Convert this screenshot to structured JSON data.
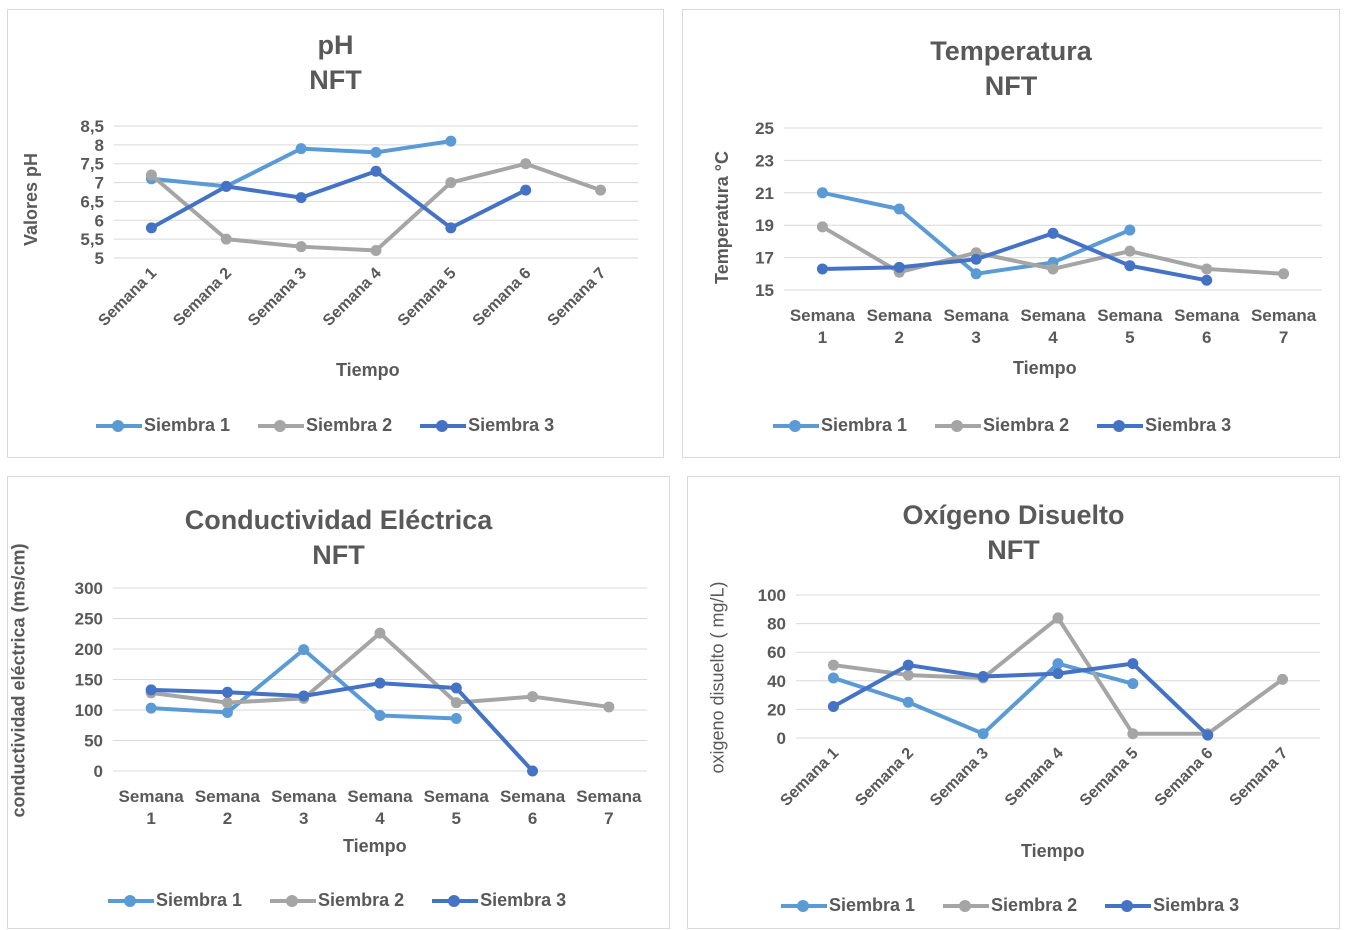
{
  "colors": {
    "siembra1": "#5b9bd5",
    "siembra2": "#a5a5a5",
    "siembra3": "#4472c4",
    "grid": "#d9d9d9",
    "text": "#595959"
  },
  "legend": [
    "Siembra 1",
    "Siembra 2",
    "Siembra 3"
  ],
  "chart_data": [
    {
      "id": "ph",
      "type": "line",
      "title": [
        "pH",
        "NFT"
      ],
      "xlabel": "Tiempo",
      "ylabel": "Valores pH",
      "categories": [
        "Semana 1",
        "Semana 2",
        "Semana 3",
        "Semana 4",
        "Semana 5",
        "Semana 6",
        "Semana 7"
      ],
      "category_label_style": "rotated",
      "ylim": [
        5,
        8.5
      ],
      "yticks": [
        "5",
        "5,5",
        "6",
        "6,5",
        "7",
        "7,5",
        "8",
        "8,5"
      ],
      "series": [
        {
          "name": "Siembra 1",
          "values": [
            7.1,
            6.9,
            7.9,
            7.8,
            8.1,
            null,
            null
          ]
        },
        {
          "name": "Siembra 2",
          "values": [
            7.2,
            5.5,
            5.3,
            5.2,
            7.0,
            7.5,
            6.8
          ]
        },
        {
          "name": "Siembra 3",
          "values": [
            5.8,
            6.9,
            6.6,
            7.3,
            5.8,
            6.8,
            null
          ]
        }
      ],
      "grid": true,
      "legend_position": "bottom"
    },
    {
      "id": "temp",
      "type": "line",
      "title": [
        "Temperatura",
        "NFT"
      ],
      "xlabel": "Tiempo",
      "ylabel": "Temperatura °C",
      "categories": [
        "Semana 1",
        "Semana 2",
        "Semana 3",
        "Semana 4",
        "Semana 5",
        "Semana 6",
        "Semana 7"
      ],
      "category_label_style": "wrapped",
      "ylim": [
        15,
        25
      ],
      "yticks": [
        "15",
        "17",
        "19",
        "21",
        "23",
        "25"
      ],
      "series": [
        {
          "name": "Siembra 1",
          "values": [
            21.0,
            20.0,
            16.0,
            16.7,
            18.7,
            null,
            null
          ]
        },
        {
          "name": "Siembra 2",
          "values": [
            18.9,
            16.1,
            17.3,
            16.3,
            17.4,
            16.3,
            16.0
          ]
        },
        {
          "name": "Siembra 3",
          "values": [
            16.3,
            16.4,
            16.9,
            18.5,
            16.5,
            15.6,
            null
          ]
        }
      ],
      "grid": true,
      "legend_position": "bottom"
    },
    {
      "id": "ce",
      "type": "line",
      "title": [
        "Conductividad Eléctrica",
        "NFT"
      ],
      "xlabel": "Tiempo",
      "ylabel": "conductividad eléctrica (ms/cm)",
      "categories": [
        "Semana 1",
        "Semana 2",
        "Semana 3",
        "Semana 4",
        "Semana 5",
        "Semana 6",
        "Semana 7"
      ],
      "category_label_style": "wrapped",
      "ylim": [
        0,
        300
      ],
      "yticks": [
        "0",
        "50",
        "100",
        "150",
        "200",
        "250",
        "300"
      ],
      "series": [
        {
          "name": "Siembra 1",
          "values": [
            103,
            96,
            199,
            91,
            86,
            null,
            null
          ]
        },
        {
          "name": "Siembra 2",
          "values": [
            128,
            112,
            119,
            226,
            112,
            122,
            105
          ]
        },
        {
          "name": "Siembra 3",
          "values": [
            133,
            129,
            123,
            144,
            136,
            0,
            null
          ]
        }
      ],
      "grid": true,
      "legend_position": "bottom"
    },
    {
      "id": "od",
      "type": "line",
      "title": [
        "Oxígeno Disuelto",
        "NFT"
      ],
      "xlabel": "Tiempo",
      "ylabel": "oxigeno disuelto ( mg/L)",
      "categories": [
        "Semana 1",
        "Semana 2",
        "Semana 3",
        "Semana 4",
        "Semana 5",
        "Semana 6",
        "Semana 7"
      ],
      "category_label_style": "rotated",
      "ylim": [
        0,
        100
      ],
      "yticks": [
        "0",
        "20",
        "40",
        "60",
        "80",
        "100"
      ],
      "series": [
        {
          "name": "Siembra 1",
          "values": [
            42,
            25,
            3,
            52,
            38,
            null,
            null
          ]
        },
        {
          "name": "Siembra 2",
          "values": [
            51,
            44,
            42,
            84,
            3,
            3,
            41
          ]
        },
        {
          "name": "Siembra 3",
          "values": [
            22,
            51,
            43,
            45,
            52,
            2,
            null
          ]
        }
      ],
      "grid": true,
      "legend_position": "bottom"
    }
  ]
}
